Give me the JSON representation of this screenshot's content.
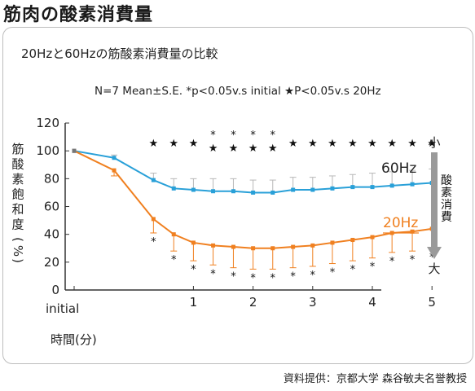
{
  "page": {
    "title": "筋肉の酸素消費量",
    "credit": "資料提供：京都大学 森谷敏夫名誉教授"
  },
  "chart_data": {
    "type": "line",
    "title": "20Hzと60Hzの筋酸素消費量の比較",
    "annotation": "N=7 Mean±S.E.  *p<0.05v.s initial  ★P<0.05v.s 20Hz",
    "xlabel": "時間(分)",
    "ylabel": "筋酸素飽和度(%)",
    "ylim": [
      0,
      120
    ],
    "yticks": [
      0,
      20,
      40,
      60,
      80,
      100,
      120
    ],
    "xlim": [
      -1,
      5
    ],
    "xticks": [
      {
        "value": -1,
        "label": "initial"
      },
      {
        "value": 1,
        "label": "1"
      },
      {
        "value": 2,
        "label": "2"
      },
      {
        "value": 3,
        "label": "3"
      },
      {
        "value": 4,
        "label": "4"
      },
      {
        "value": 5,
        "label": "5"
      }
    ],
    "grid": false,
    "right_axis": {
      "top_label": "小",
      "middle_label": "酸素消費",
      "bottom_label": "大"
    },
    "x": [
      -1,
      -0.33,
      0.33,
      0.67,
      1,
      1.33,
      1.67,
      2,
      2.33,
      2.67,
      3,
      3.33,
      3.67,
      4,
      4.33,
      4.67,
      5
    ],
    "series": [
      {
        "name": "60Hz",
        "color": "#29a0d8",
        "values": [
          100,
          95,
          79,
          73,
          72,
          71,
          71,
          70,
          70,
          72,
          72,
          73,
          74,
          74,
          75,
          76,
          77
        ],
        "errors": [
          0,
          2,
          5,
          7,
          8,
          9,
          9,
          9,
          9,
          9,
          9,
          9,
          9,
          10,
          10,
          10,
          10
        ],
        "significance": [
          "",
          "",
          "★",
          "★",
          "★",
          "★*",
          "★*",
          "★*",
          "★*",
          "★",
          "★",
          "★",
          "★",
          "★",
          "★",
          "★",
          "★"
        ]
      },
      {
        "name": "20Hz",
        "color": "#f08020",
        "values": [
          100,
          86,
          51,
          40,
          34,
          32,
          31,
          30,
          30,
          31,
          32,
          34,
          36,
          38,
          41,
          42,
          44
        ],
        "errors": [
          0,
          4,
          10,
          12,
          13,
          14,
          15,
          15,
          15,
          15,
          15,
          15,
          15,
          15,
          14,
          14,
          14
        ],
        "significance": [
          "",
          "",
          "*",
          "*",
          "*",
          "*",
          "*",
          "*",
          "*",
          "*",
          "*",
          "*",
          "*",
          "*",
          "*",
          "*",
          "*"
        ]
      }
    ]
  }
}
